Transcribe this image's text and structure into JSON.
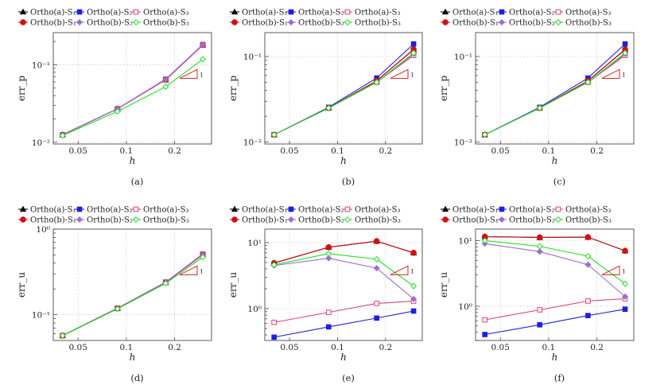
{
  "chart_data": [
    {
      "type": "line",
      "panel_label": "(a)",
      "xlabel": "h",
      "ylabel": "err_p",
      "yscale": "log",
      "xscale": "log",
      "xlim": [
        0.035,
        0.34
      ],
      "ylim": [
        0.0095,
        0.26
      ],
      "xticks": [
        0.05,
        0.1,
        0.2
      ],
      "xtick_labels": [
        "0.05",
        "0.1",
        "0.2"
      ],
      "yticks": [
        0.01,
        0.1
      ],
      "ytick_labels": [
        "10⁻²",
        "10⁻¹"
      ],
      "slope_label": "1",
      "legend": [
        "Ortho(a)-S₁",
        "Ortho(a)-S₂",
        "Ortho(a)-S₃",
        "Ortho(b)-S₁",
        "Ortho(b)-S₂",
        "Ortho(b)-S₃"
      ],
      "x": [
        0.04,
        0.088,
        0.176,
        0.3
      ],
      "series": [
        {
          "name": "Ortho(a)-S₁",
          "values": [
            0.0125,
            0.027,
            0.064,
            0.18
          ]
        },
        {
          "name": "Ortho(a)-S₂",
          "values": [
            0.0125,
            0.027,
            0.065,
            0.182
          ]
        },
        {
          "name": "Ortho(a)-S₃",
          "values": [
            0.0125,
            0.027,
            0.065,
            0.182
          ]
        },
        {
          "name": "Ortho(b)-S₁",
          "values": [
            0.0125,
            0.027,
            0.064,
            0.18
          ]
        },
        {
          "name": "Ortho(b)-S₂",
          "values": [
            0.0125,
            0.027,
            0.064,
            0.181
          ]
        },
        {
          "name": "Ortho(b)-S₃",
          "values": [
            0.0122,
            0.025,
            0.052,
            0.118
          ]
        }
      ]
    },
    {
      "type": "line",
      "panel_label": "(b)",
      "xlabel": "h",
      "ylabel": "err_p",
      "yscale": "log",
      "xscale": "log",
      "xlim": [
        0.035,
        0.34
      ],
      "ylim": [
        0.0095,
        0.19
      ],
      "xticks": [
        0.05,
        0.1,
        0.2
      ],
      "xtick_labels": [
        "0.05",
        "0.1",
        "0.2"
      ],
      "yticks": [
        0.01,
        0.1
      ],
      "ytick_labels": [
        "10⁻²",
        "10⁻¹"
      ],
      "slope_label": "1",
      "legend": [
        "Ortho(a)-S₁",
        "Ortho(a)-S₂",
        "Ortho(a)-S₃",
        "Ortho(b)-S₁",
        "Ortho(b)-S₂",
        "Ortho(b)-S₃"
      ],
      "x": [
        0.04,
        0.088,
        0.176,
        0.3
      ],
      "series": [
        {
          "name": "Ortho(a)-S₁",
          "values": [
            0.0122,
            0.025,
            0.052,
            0.12
          ]
        },
        {
          "name": "Ortho(a)-S₂",
          "values": [
            0.0122,
            0.0255,
            0.056,
            0.14
          ]
        },
        {
          "name": "Ortho(a)-S₃",
          "values": [
            0.0122,
            0.025,
            0.05,
            0.103
          ]
        },
        {
          "name": "Ortho(b)-S₁",
          "values": [
            0.0122,
            0.025,
            0.052,
            0.121
          ]
        },
        {
          "name": "Ortho(b)-S₂",
          "values": [
            0.0122,
            0.025,
            0.05,
            0.107
          ]
        },
        {
          "name": "Ortho(b)-S₃",
          "values": [
            0.0122,
            0.025,
            0.05,
            0.11
          ]
        }
      ]
    },
    {
      "type": "line",
      "panel_label": "(c)",
      "xlabel": "h",
      "ylabel": "err_p",
      "yscale": "log",
      "xscale": "log",
      "xlim": [
        0.035,
        0.34
      ],
      "ylim": [
        0.0095,
        0.19
      ],
      "xticks": [
        0.05,
        0.1,
        0.2
      ],
      "xtick_labels": [
        "0.05",
        "0.1",
        "0.2"
      ],
      "yticks": [
        0.01,
        0.1
      ],
      "ytick_labels": [
        "10⁻²",
        "10⁻¹"
      ],
      "slope_label": "1",
      "legend": [
        "Ortho(a)-S₁",
        "Ortho(a)-S₂",
        "Ortho(a)-S₃",
        "Ortho(b)-S₁",
        "Ortho(b)-S₂",
        "Ortho(b)-S₃"
      ],
      "x": [
        0.04,
        0.088,
        0.176,
        0.3
      ],
      "series": [
        {
          "name": "Ortho(a)-S₁",
          "values": [
            0.0122,
            0.025,
            0.052,
            0.12
          ]
        },
        {
          "name": "Ortho(a)-S₂",
          "values": [
            0.0122,
            0.0255,
            0.056,
            0.14
          ]
        },
        {
          "name": "Ortho(a)-S₃",
          "values": [
            0.0122,
            0.025,
            0.05,
            0.103
          ]
        },
        {
          "name": "Ortho(b)-S₁",
          "values": [
            0.0122,
            0.025,
            0.052,
            0.121
          ]
        },
        {
          "name": "Ortho(b)-S₂",
          "values": [
            0.0122,
            0.025,
            0.05,
            0.107
          ]
        },
        {
          "name": "Ortho(b)-S₃",
          "values": [
            0.0122,
            0.025,
            0.05,
            0.11
          ]
        }
      ]
    },
    {
      "type": "line",
      "panel_label": "(d)",
      "xlabel": "h",
      "ylabel": "err_u",
      "yscale": "log",
      "xscale": "log",
      "xlim": [
        0.035,
        0.34
      ],
      "ylim": [
        0.05,
        1.0
      ],
      "xticks": [
        0.05,
        0.1,
        0.2
      ],
      "xtick_labels": [
        "0.05",
        "0.1",
        "0.2"
      ],
      "yticks": [
        0.1,
        1
      ],
      "ytick_labels": [
        "10⁻¹",
        "10⁰"
      ],
      "slope_label": "1",
      "legend": [
        "Ortho(a)-S₁",
        "Ortho(a)-S₂",
        "Ortho(a)-S₃",
        "Ortho(b)-S₁",
        "Ortho(b)-S₂",
        "Ortho(b)-S₃"
      ],
      "x": [
        0.04,
        0.088,
        0.176,
        0.3
      ],
      "series": [
        {
          "name": "Ortho(a)-S₁",
          "values": [
            0.057,
            0.118,
            0.238,
            0.5
          ]
        },
        {
          "name": "Ortho(a)-S₂",
          "values": [
            0.057,
            0.119,
            0.24,
            0.51
          ]
        },
        {
          "name": "Ortho(a)-S₃",
          "values": [
            0.057,
            0.119,
            0.24,
            0.51
          ]
        },
        {
          "name": "Ortho(b)-S₁",
          "values": [
            0.057,
            0.118,
            0.238,
            0.5
          ]
        },
        {
          "name": "Ortho(b)-S₂",
          "values": [
            0.057,
            0.118,
            0.238,
            0.5
          ]
        },
        {
          "name": "Ortho(b)-S₃",
          "values": [
            0.057,
            0.117,
            0.232,
            0.47
          ]
        }
      ]
    },
    {
      "type": "line",
      "panel_label": "(e)",
      "xlabel": "h",
      "ylabel": "err_u",
      "yscale": "log",
      "xscale": "log",
      "xlim": [
        0.035,
        0.34
      ],
      "ylim": [
        0.33,
        16
      ],
      "xticks": [
        0.05,
        0.1,
        0.2
      ],
      "xtick_labels": [
        "0.05",
        "0.1",
        "0.2"
      ],
      "yticks": [
        1,
        10
      ],
      "ytick_labels": [
        "10⁰",
        "10¹"
      ],
      "slope_label": "1",
      "legend": [
        "Ortho(a)-S₁",
        "Ortho(a)-S₂",
        "Ortho(a)-S₃",
        "Ortho(b)-S₁",
        "Ortho(b)-S₂",
        "Ortho(b)-S₃"
      ],
      "x": [
        0.04,
        0.088,
        0.176,
        0.3
      ],
      "series": [
        {
          "name": "Ortho(a)-S₁",
          "values": [
            4.9,
            8.5,
            10.5,
            7.0
          ]
        },
        {
          "name": "Ortho(a)-S₂",
          "values": [
            0.37,
            0.53,
            0.72,
            0.92
          ]
        },
        {
          "name": "Ortho(a)-S₃",
          "values": [
            0.62,
            0.88,
            1.2,
            1.3
          ]
        },
        {
          "name": "Ortho(b)-S₁",
          "values": [
            4.9,
            8.5,
            10.5,
            7.0
          ]
        },
        {
          "name": "Ortho(b)-S₂",
          "values": [
            4.5,
            5.8,
            4.1,
            1.4
          ]
        },
        {
          "name": "Ortho(b)-S₃",
          "values": [
            4.6,
            6.8,
            5.6,
            2.2
          ]
        }
      ]
    },
    {
      "type": "line",
      "panel_label": "(f)",
      "xlabel": "h",
      "ylabel": "err_u",
      "yscale": "log",
      "xscale": "log",
      "xlim": [
        0.035,
        0.34
      ],
      "ylim": [
        0.3,
        15
      ],
      "xticks": [
        0.05,
        0.1,
        0.2
      ],
      "xtick_labels": [
        "0.05",
        "0.1",
        "0.2"
      ],
      "yticks": [
        1,
        10
      ],
      "ytick_labels": [
        "10⁰",
        "10¹"
      ],
      "slope_label": "1",
      "legend": [
        "Ortho(a)-S₁",
        "Ortho(a)-S₂",
        "Ortho(a)-S₃",
        "Ortho(b)-S₁",
        "Ortho(b)-S₂",
        "Ortho(b)-S₃"
      ],
      "x": [
        0.04,
        0.088,
        0.176,
        0.3
      ],
      "series": [
        {
          "name": "Ortho(a)-S₁",
          "values": [
            11.5,
            11.2,
            11.3,
            7.0
          ]
        },
        {
          "name": "Ortho(a)-S₂",
          "values": [
            0.37,
            0.52,
            0.72,
            0.9
          ]
        },
        {
          "name": "Ortho(a)-S₃",
          "values": [
            0.62,
            0.88,
            1.2,
            1.3
          ]
        },
        {
          "name": "Ortho(b)-S₁",
          "values": [
            11.5,
            11.2,
            11.3,
            7.0
          ]
        },
        {
          "name": "Ortho(b)-S₂",
          "values": [
            9.0,
            6.8,
            4.3,
            1.4
          ]
        },
        {
          "name": "Ortho(b)-S₃",
          "values": [
            10.0,
            8.2,
            5.8,
            2.2
          ]
        }
      ]
    }
  ],
  "series_styles": [
    {
      "color": "#000000",
      "marker": "triangle",
      "fill": true
    },
    {
      "color": "#1f1fe0",
      "marker": "square",
      "fill": true
    },
    {
      "color": "#e0407a",
      "marker": "square",
      "fill": false
    },
    {
      "color": "#d01010",
      "marker": "circle",
      "fill": true
    },
    {
      "color": "#9b6fcf",
      "marker": "diamond",
      "fill": true
    },
    {
      "color": "#22dd22",
      "marker": "diamond",
      "fill": false
    }
  ],
  "slope_color": "#d01010"
}
